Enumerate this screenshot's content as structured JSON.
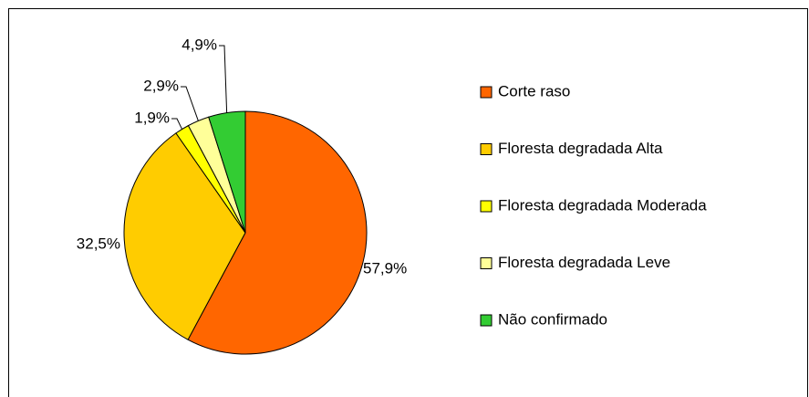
{
  "chart_data": {
    "type": "pie",
    "categories": [
      "Corte raso",
      "Floresta degradada Alta",
      "Floresta degradada Moderada",
      "Floresta degradada Leve",
      "Não confirmado"
    ],
    "values": [
      57.9,
      32.5,
      1.9,
      2.9,
      4.9
    ],
    "value_labels": [
      "57,9%",
      "32,5%",
      "1,9%",
      "2,9%",
      "4,9%"
    ],
    "colors": [
      "#ff6600",
      "#ffcc00",
      "#ffff00",
      "#ffff99",
      "#33cc33"
    ],
    "legend": "right"
  }
}
